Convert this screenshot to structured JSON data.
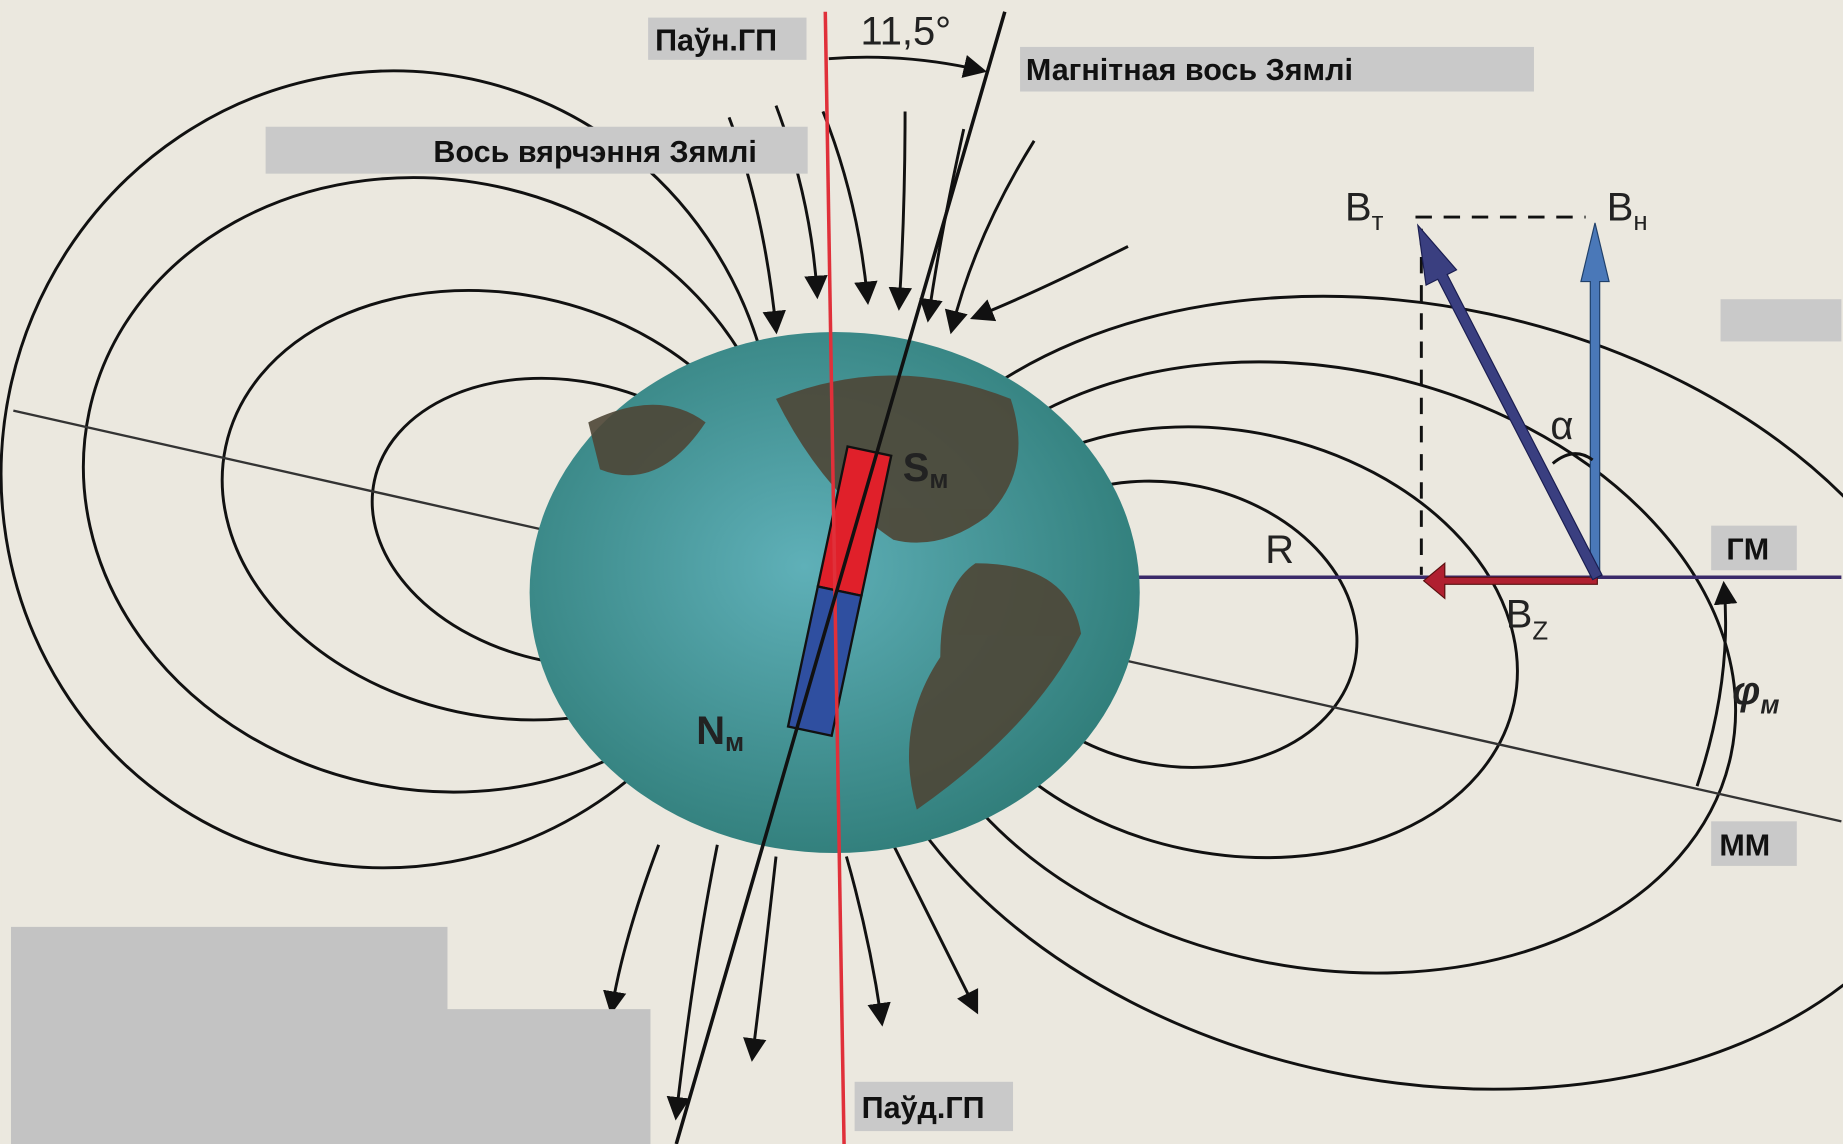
{
  "labels": {
    "north_pole": "Паўн.ГП",
    "angle": "11,5°",
    "magnetic_axis": "Магнітная вось Зямлі",
    "rotation_axis": "Вось вярчэння Зямлі",
    "south_pole": "Паўд.ГП",
    "geomagnetic_equator": "ГМ",
    "magnetic_meridian": "ММ",
    "radius": "R",
    "alpha": "α"
  },
  "vectors": {
    "total": {
      "symbol": "B",
      "subscript": "т"
    },
    "horizontal": {
      "symbol": "B",
      "subscript": "н"
    },
    "vertical": {
      "symbol": "B",
      "subscript": "Z"
    }
  },
  "magnet": {
    "south": {
      "symbol": "S",
      "subscript": "м"
    },
    "north": {
      "symbol": "N",
      "subscript": "м"
    }
  },
  "latitude": {
    "symbol": "φ",
    "subscript": "м"
  }
}
